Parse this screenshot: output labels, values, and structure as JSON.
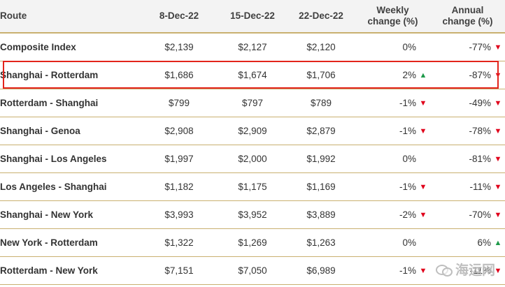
{
  "table": {
    "headers": {
      "route": "Route",
      "d1": "8-Dec-22",
      "d2": "15-Dec-22",
      "d3": "22-Dec-22",
      "weekly_l1": "Weekly",
      "weekly_l2": "change (%)",
      "annual_l1": "Annual",
      "annual_l2": "change (%)"
    },
    "rows": [
      {
        "route": "Composite Index",
        "d1": "$2,139",
        "d2": "$2,127",
        "d3": "$2,120",
        "weekly": "0%",
        "weekly_dir": "none",
        "annual": "-77%",
        "annual_dir": "down"
      },
      {
        "route": "Shanghai - Rotterdam",
        "d1": "$1,686",
        "d2": "$1,674",
        "d3": "$1,706",
        "weekly": "2%",
        "weekly_dir": "up",
        "annual": "-87%",
        "annual_dir": "down"
      },
      {
        "route": "Rotterdam - Shanghai",
        "d1": "$799",
        "d2": "$797",
        "d3": "$789",
        "weekly": "-1%",
        "weekly_dir": "down",
        "annual": "-49%",
        "annual_dir": "down"
      },
      {
        "route": "Shanghai - Genoa",
        "d1": "$2,908",
        "d2": "$2,909",
        "d3": "$2,879",
        "weekly": "-1%",
        "weekly_dir": "down",
        "annual": "-78%",
        "annual_dir": "down"
      },
      {
        "route": "Shanghai - Los Angeles",
        "d1": "$1,997",
        "d2": "$2,000",
        "d3": "$1,992",
        "weekly": "0%",
        "weekly_dir": "none",
        "annual": "-81%",
        "annual_dir": "down"
      },
      {
        "route": "Los Angeles - Shanghai",
        "d1": "$1,182",
        "d2": "$1,175",
        "d3": "$1,169",
        "weekly": "-1%",
        "weekly_dir": "down",
        "annual": "-11%",
        "annual_dir": "down"
      },
      {
        "route": "Shanghai - New York",
        "d1": "$3,993",
        "d2": "$3,952",
        "d3": "$3,889",
        "weekly": "-2%",
        "weekly_dir": "down",
        "annual": "-70%",
        "annual_dir": "down"
      },
      {
        "route": "New York - Rotterdam",
        "d1": "$1,322",
        "d2": "$1,269",
        "d3": "$1,263",
        "weekly": "0%",
        "weekly_dir": "none",
        "annual": "6%",
        "annual_dir": "up"
      },
      {
        "route": "Rotterdam - New York",
        "d1": "$7,151",
        "d2": "$7,050",
        "d3": "$6,989",
        "weekly": "-1%",
        "weekly_dir": "down",
        "annual": "-11%",
        "annual_dir": "down"
      }
    ],
    "highlighted_row": "Shanghai - Rotterdam"
  },
  "arrows": {
    "up": "▲",
    "down": "▼"
  },
  "colors": {
    "up": "#1e9a4a",
    "down": "#e0001a",
    "highlight": "#e3241b",
    "rule": "#c9b070"
  },
  "watermark": {
    "text": "海运网",
    "icon": "wechat-icon"
  }
}
